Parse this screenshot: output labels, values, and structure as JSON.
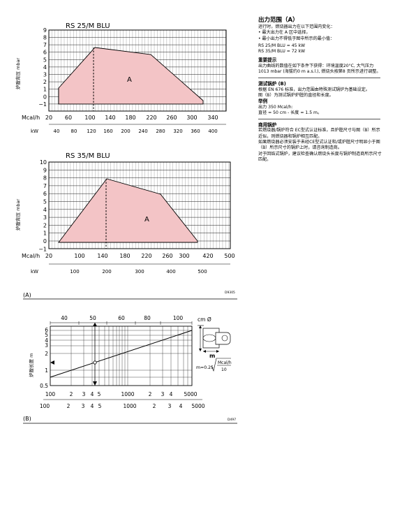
{
  "chartA": {
    "title": "RS 25/M BLU",
    "ylabel": "炉膛背压 mbar",
    "mcal_label": "Mcal/h",
    "kw_label": "kW",
    "area_label": "A",
    "yticks": [
      "9",
      "8",
      "7",
      "6",
      "5",
      "4",
      "3",
      "2",
      "1",
      "0",
      "−1"
    ],
    "mcal_ticks": [
      "20",
      "60",
      "100",
      "140",
      "180",
      "220",
      "260",
      "300",
      "340"
    ],
    "kw_ticks": [
      "40",
      "60",
      "80",
      "100",
      "120",
      "140",
      "160",
      "180",
      "200",
      "220",
      "240",
      "260",
      "280",
      "300",
      "320",
      "340",
      "360",
      "380",
      "400"
    ]
  },
  "chartB": {
    "title": "RS 35/M BLU",
    "ylabel": "炉膛背压 mbar",
    "mcal_label": "Mcal/h",
    "kw_label": "kW",
    "area_label": "A",
    "yticks": [
      "10",
      "9",
      "8",
      "7",
      "6",
      "5",
      "4",
      "3",
      "2",
      "1",
      "0",
      "−1"
    ],
    "mcal_ticks": [
      "20",
      "60",
      "100",
      "140",
      "180",
      "220",
      "260",
      "300",
      "340",
      "380",
      "420",
      "460",
      "500"
    ],
    "kw_ticks": [
      "100",
      "200",
      "300",
      "400",
      "500"
    ]
  },
  "fig_a_label": "(A)",
  "fig_a_code": "D9305",
  "chartC": {
    "cm_label": "cm Ø",
    "diam_ticks": [
      "40",
      "50",
      "60",
      "80",
      "100"
    ],
    "ylabel": "炉膛长度 m",
    "yticks": [
      "6",
      "5",
      "4",
      "3",
      "2",
      "1",
      "0.5"
    ],
    "x_top": [
      "100",
      "2",
      "3",
      "4",
      "5",
      "1000",
      "2",
      "3",
      "4",
      "5000"
    ],
    "x_bottom": [
      "100",
      "2",
      "3",
      "4",
      "5",
      "1000",
      "2",
      "3",
      "4",
      "5000"
    ],
    "formula": "m=0.25",
    "frac_num": "Mcal/h",
    "frac_den": "10",
    "m_label": "m"
  },
  "fig_b_label": "(B)",
  "fig_b_code": "D497",
  "text": {
    "heading": "出力范围（A）",
    "intro": "运行时，燃烧器出力在以下范围内变化：",
    "b1": "• 最大出力在 A 区中选择，",
    "b2": "• 最小出力不得低于图中所示的最小值：",
    "m1": "RS 25/M BLU = 45 kW",
    "m2": "RS 35/M BLU = 72 kW",
    "imp_title": "重要提示",
    "imp_body": "出力曲线的数值在如下条件下获得：环境温度20°C, 大气压力1013 mbar (海拔约0 m a.s.l.), 燃烧头按第8 页所示进行调整。",
    "test_title": "测试锅炉 (B)",
    "test_body": "根据 EN 676 标准，出力范围由特殊测试锅炉为基础设定。",
    "test_body2": "图（B）为测试锅炉炉膛的直径和长度。",
    "example_title": "举例",
    "example_1": "出力 350 Mcal/h:",
    "example_2": "直径 = 50 cm - 长度 = 1.5 m。",
    "comm_title": "商用锅炉",
    "comm_1": "若燃烧器/锅炉符合 EC型式认证标准，且炉膛尺寸与图（B）所示近似，则燃烧器和锅炉相互匹配。",
    "comm_2": "如果燃烧器必须安装于未经CE型式认证和/或炉膛尺寸明显小于图（B）所示尺寸的锅炉上时，请咨询制造商。",
    "comm_3": "对于回焰式锅炉，建议检查确认燃烧头长度与锅炉制造商所示尺寸匹配。"
  }
}
